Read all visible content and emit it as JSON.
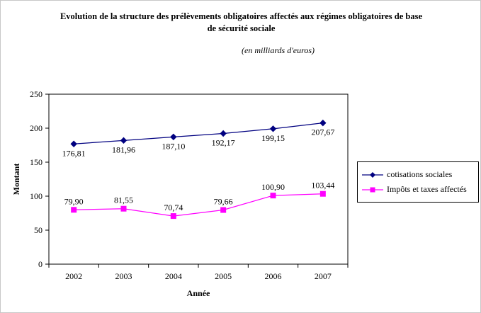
{
  "title": {
    "line1": "Evolution de la structure des prélèvements obligatoires affectés aux régimes obligatoires de base",
    "line2": "de sécurité sociale"
  },
  "subtitle": "(en milliards d'euros)",
  "chart_data": {
    "type": "line",
    "categories": [
      "2002",
      "2003",
      "2004",
      "2005",
      "2006",
      "2007"
    ],
    "xlabel": "Année",
    "ylabel": "Montant",
    "ylim": [
      0,
      250
    ],
    "ytick_interval": 50,
    "yticks": [
      "0",
      "50",
      "100",
      "150",
      "200",
      "250"
    ],
    "grid": false,
    "legend_position": "right",
    "series": [
      {
        "name": "cotisations sociales",
        "color": "#000080",
        "marker": "diamond",
        "values": [
          176.81,
          181.96,
          187.1,
          192.17,
          199.15,
          207.67
        ],
        "labels": [
          "176,81",
          "181,96",
          "187,10",
          "192,17",
          "199,15",
          "207,67"
        ],
        "label_position": "below"
      },
      {
        "name": "Impôts et taxes affectés",
        "color": "#FF00FF",
        "marker": "square",
        "values": [
          79.9,
          81.55,
          70.74,
          79.66,
          100.9,
          103.44
        ],
        "labels": [
          "79,90",
          "81,55",
          "70,74",
          "79,66",
          "100,90",
          "103,44"
        ],
        "label_position": "above"
      }
    ]
  }
}
